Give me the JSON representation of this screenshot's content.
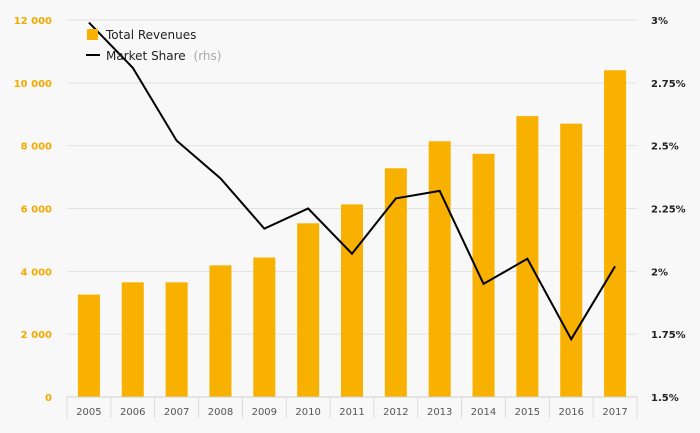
{
  "chart_data": {
    "type": "bar",
    "categories": [
      "2005",
      "2006",
      "2007",
      "2008",
      "2009",
      "2010",
      "2011",
      "2012",
      "2013",
      "2014",
      "2015",
      "2016",
      "2017"
    ],
    "series": [
      {
        "name": "Total Revenues",
        "type": "bar",
        "axis": "left",
        "color": "#f8b100",
        "values": [
          3260,
          3650,
          3650,
          4190,
          4440,
          5530,
          6130,
          7280,
          8140,
          7740,
          8940,
          8700,
          10400
        ]
      },
      {
        "name": "Market Share",
        "name_suffix": "(rhs)",
        "type": "line",
        "axis": "right",
        "color": "#000000",
        "values": [
          2.99,
          2.81,
          2.52,
          2.37,
          2.17,
          2.25,
          2.07,
          2.29,
          2.32,
          1.95,
          2.05,
          1.73,
          2.02
        ]
      }
    ],
    "y_left": {
      "lim": [
        0,
        12000
      ],
      "ticks": [
        0,
        2000,
        4000,
        6000,
        8000,
        10000,
        12000
      ],
      "tick_labels": [
        "0",
        "2 000",
        "4 000",
        "6 000",
        "8 000",
        "10 000",
        "12 000"
      ],
      "color": "#f2a900"
    },
    "y_right": {
      "lim": [
        1.5,
        3
      ],
      "ticks": [
        1.5,
        1.75,
        2,
        2.25,
        2.5,
        2.75,
        3
      ],
      "tick_labels": [
        "1.5%",
        "1.75%",
        "2%",
        "2.25%",
        "2.5%",
        "2.75%",
        "3%"
      ]
    },
    "legend_position": "top-left",
    "grid": true,
    "title": "",
    "xlabel": "",
    "ylabel": ""
  }
}
